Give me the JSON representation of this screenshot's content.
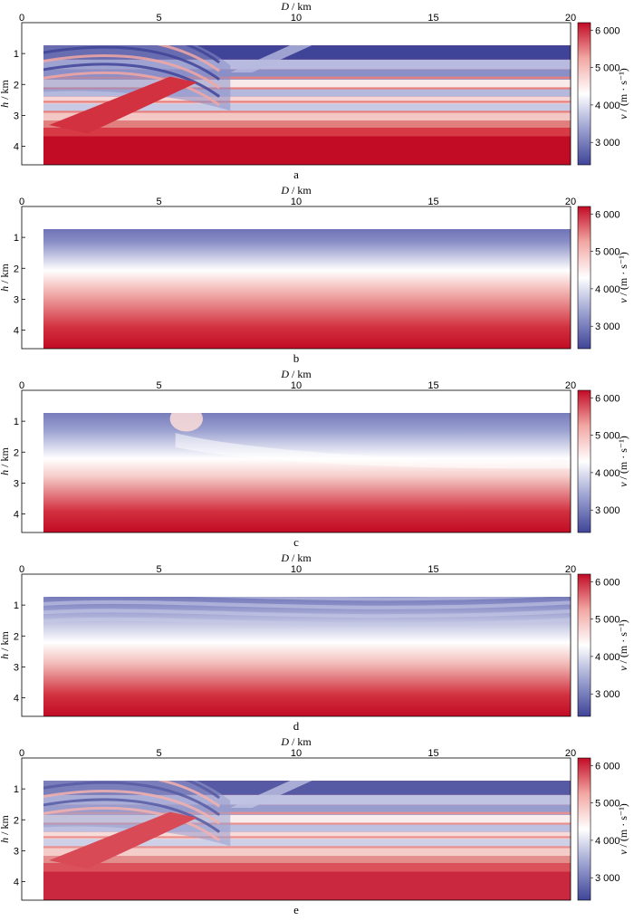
{
  "figure": {
    "x_axis_label": "D / km",
    "y_axis_label": "h / km",
    "colorbar_label": "v / (m · s⁻¹)",
    "colormap": [
      "#3f4498",
      "#9aa0d0",
      "#ffffff",
      "#f2a7a3",
      "#c20b25"
    ]
  },
  "chart_data": [
    {
      "type": "heatmap",
      "panel_label": "a",
      "x_ticks": [
        "0",
        "5",
        "10",
        "15",
        "20"
      ],
      "y_ticks": [
        "1",
        "2",
        "3",
        "4"
      ],
      "xlim": [
        0,
        20
      ],
      "ylim": [
        0,
        4.6
      ],
      "colorbar": {
        "range": [
          2400,
          6200
        ],
        "ticks": [
          "3 000",
          "4 000",
          "5 000",
          "6 000"
        ]
      },
      "description_values": {
        "min_velocity": 2400,
        "max_velocity": 6200
      }
    },
    {
      "type": "heatmap",
      "panel_label": "b",
      "x_ticks": [
        "0",
        "5",
        "10",
        "15",
        "20"
      ],
      "y_ticks": [
        "1",
        "2",
        "3",
        "4"
      ],
      "xlim": [
        0,
        20
      ],
      "ylim": [
        0,
        4.6
      ],
      "colorbar": {
        "range": [
          2400,
          6200
        ],
        "ticks": [
          "3 000",
          "4 000",
          "5 000",
          "6 000"
        ]
      }
    },
    {
      "type": "heatmap",
      "panel_label": "c",
      "x_ticks": [
        "0",
        "5",
        "10",
        "15",
        "20"
      ],
      "y_ticks": [
        "1",
        "2",
        "3",
        "4"
      ],
      "xlim": [
        0,
        20
      ],
      "ylim": [
        0,
        4.6
      ],
      "colorbar": {
        "range": [
          2400,
          6200
        ],
        "ticks": [
          "3 000",
          "4 000",
          "5 000",
          "6 000"
        ]
      }
    },
    {
      "type": "heatmap",
      "panel_label": "d",
      "x_ticks": [
        "0",
        "5",
        "10",
        "15",
        "20"
      ],
      "y_ticks": [
        "1",
        "2",
        "3",
        "4"
      ],
      "xlim": [
        0,
        20
      ],
      "ylim": [
        0,
        4.6
      ],
      "colorbar": {
        "range": [
          2400,
          6200
        ],
        "ticks": [
          "3 000",
          "4 000",
          "5 000",
          "6 000"
        ]
      }
    },
    {
      "type": "heatmap",
      "panel_label": "e",
      "x_ticks": [
        "0",
        "5",
        "10",
        "15",
        "20"
      ],
      "y_ticks": [
        "1",
        "2",
        "3",
        "4"
      ],
      "xlim": [
        0,
        20
      ],
      "ylim": [
        0,
        4.6
      ],
      "colorbar": {
        "range": [
          2400,
          6200
        ],
        "ticks": [
          "3 000",
          "4 000",
          "5 000",
          "6 000"
        ]
      }
    }
  ]
}
